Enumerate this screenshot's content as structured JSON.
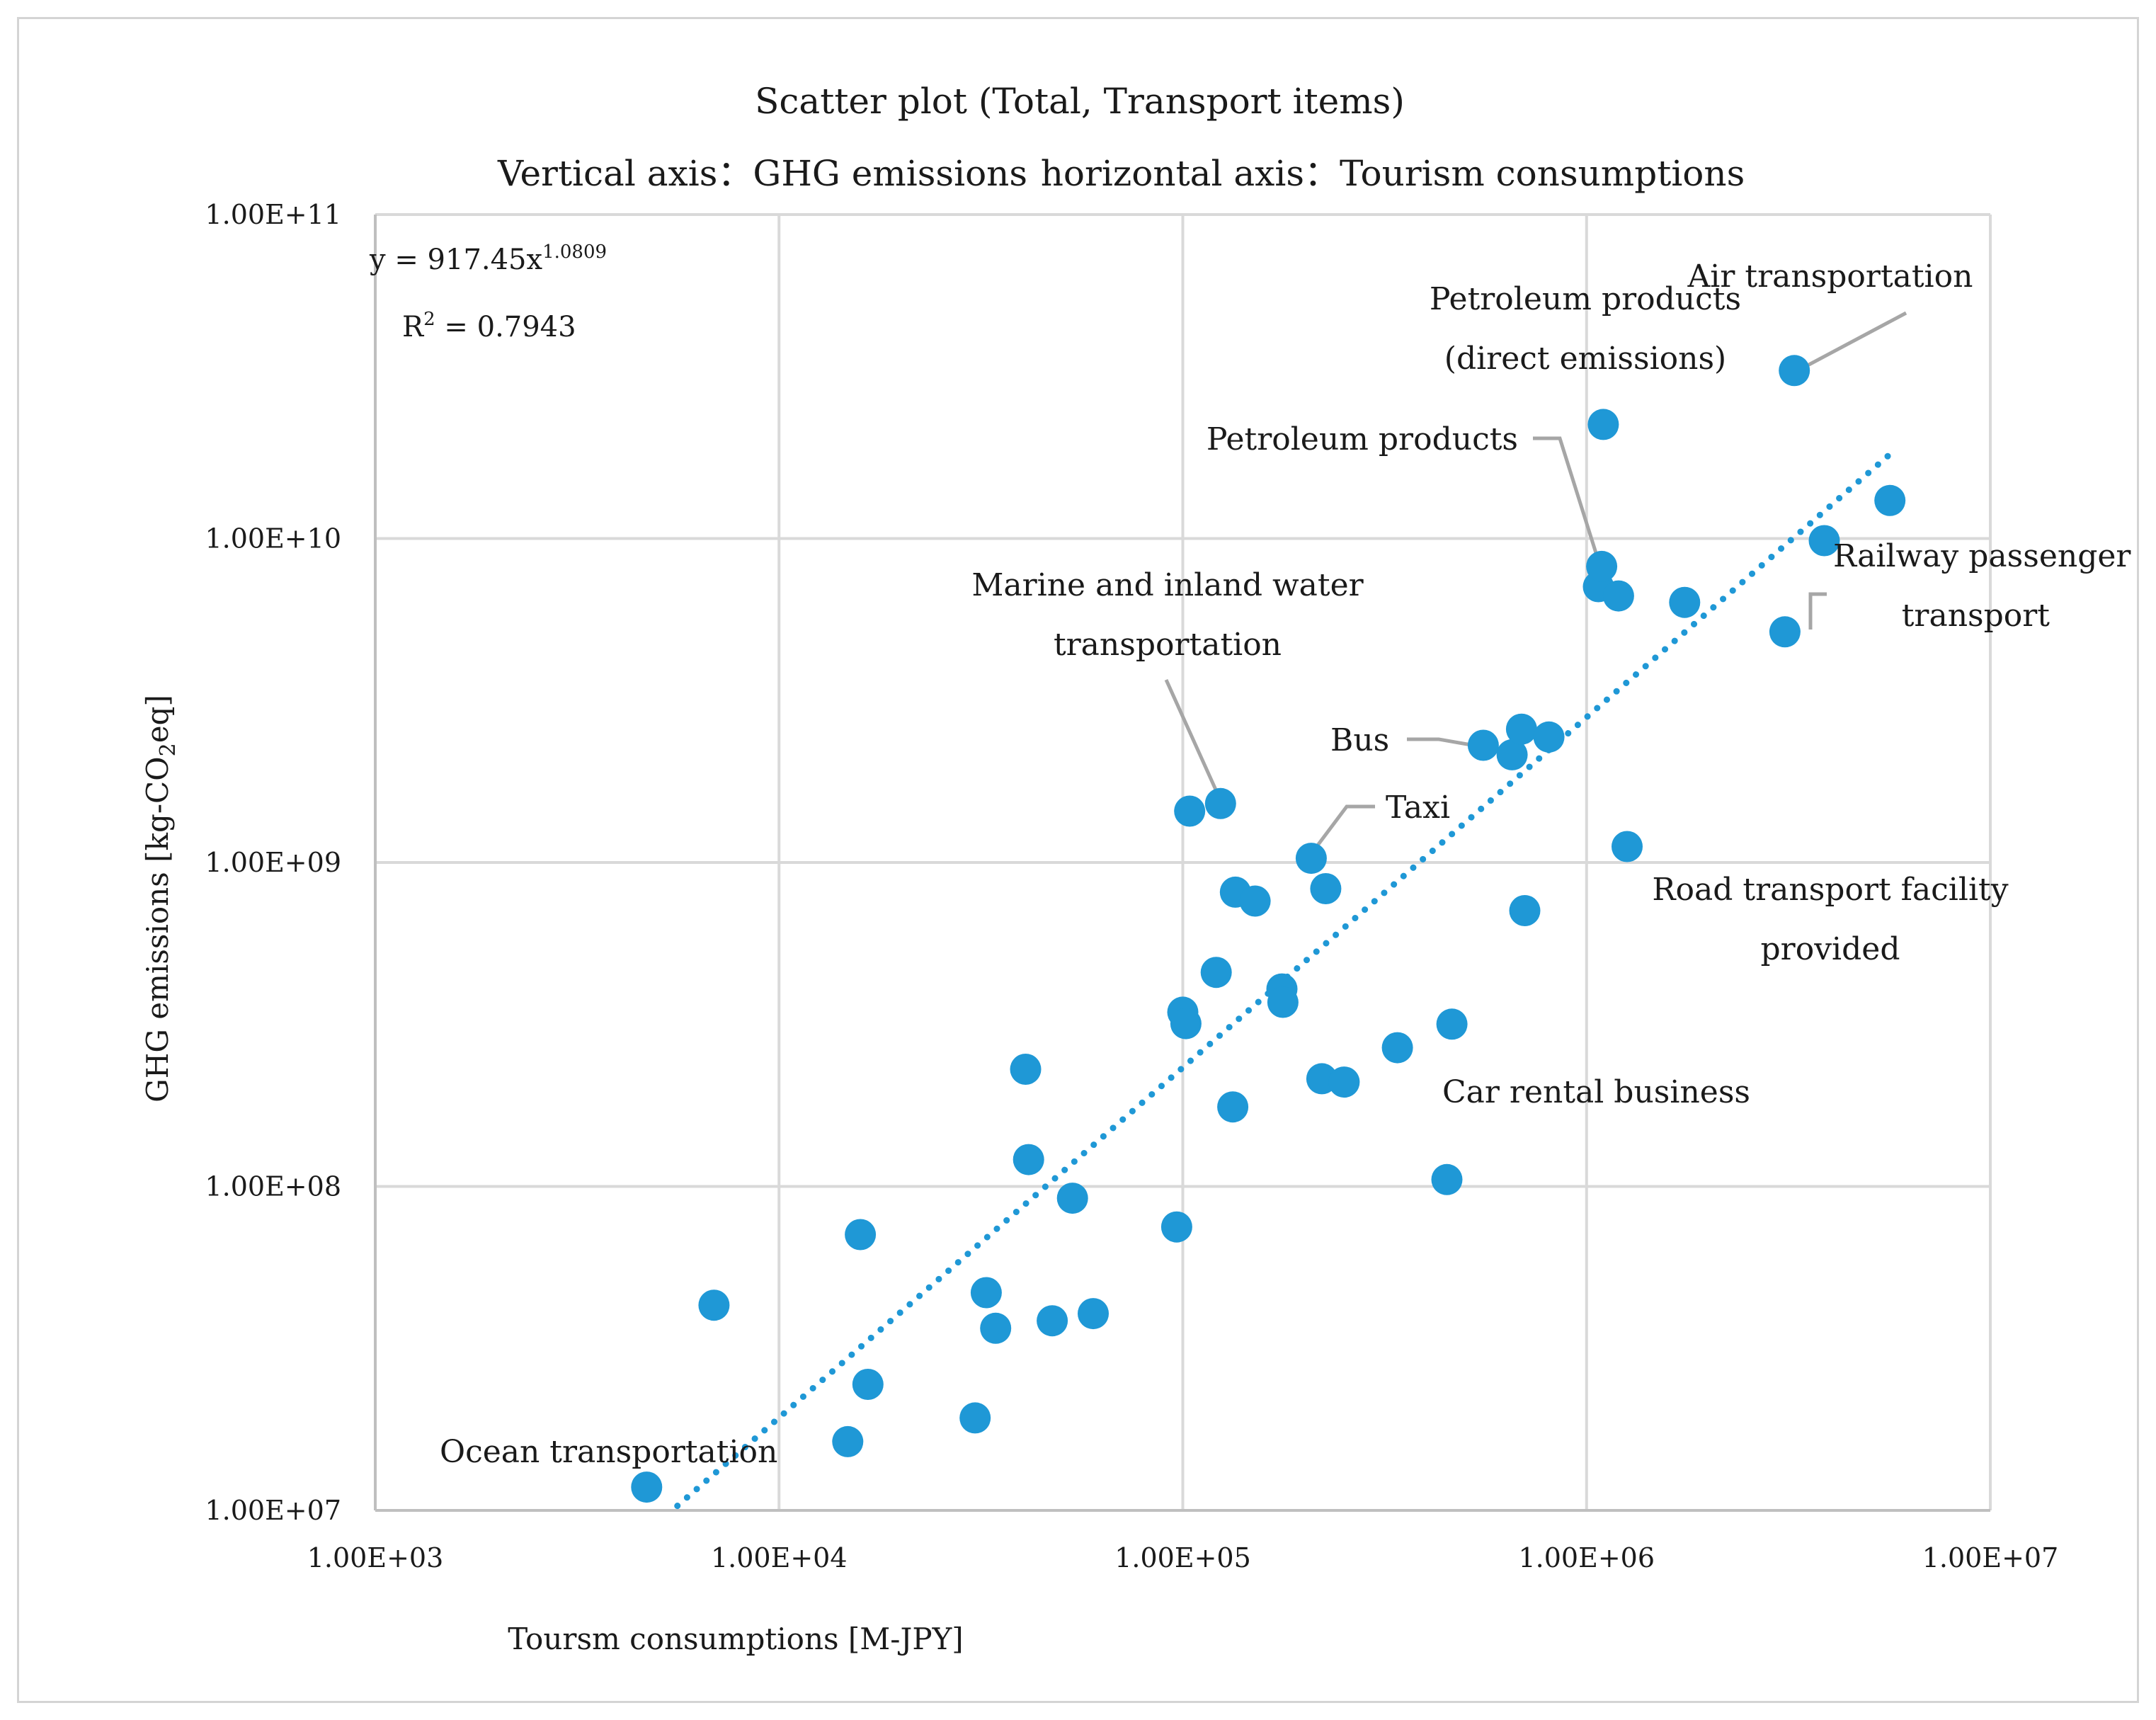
{
  "chart_data": {
    "type": "scatter",
    "title": "Scatter plot (Total, Transport items)",
    "subtitle_vertical": "Vertical axis：GHG emissions",
    "subtitle_horizontal": "horizontal axis：Tourism consumptions",
    "xlabel": "Toursm consumptions [M-JPY]",
    "ylabel_prefix": "GHG emissions [kg-CO",
    "ylabel_sub": "2",
    "ylabel_suffix": "eq]",
    "x_scale": "log",
    "y_scale": "log",
    "xlim": [
      1000,
      10000000
    ],
    "ylim": [
      10000000,
      100000000000
    ],
    "grid": true,
    "x_ticks": [
      {
        "value": 1000,
        "label": "1.00E+03"
      },
      {
        "value": 10000,
        "label": "1.00E+04"
      },
      {
        "value": 100000,
        "label": "1.00E+05"
      },
      {
        "value": 1000000,
        "label": "1.00E+06"
      },
      {
        "value": 10000000,
        "label": "1.00E+07"
      }
    ],
    "y_ticks": [
      {
        "value": 10000000,
        "label": "1.00E+07"
      },
      {
        "value": 100000000,
        "label": "1.00E+08"
      },
      {
        "value": 1000000000,
        "label": "1.00E+09"
      },
      {
        "value": 10000000000,
        "label": "1.00E+10"
      },
      {
        "value": 100000000000,
        "label": "1.00E+11"
      }
    ],
    "trendline": {
      "type": "power",
      "coefficient": 917.45,
      "exponent": 1.0809,
      "x_range": [
        5600,
        5600000
      ],
      "equation_prefix": "y = 917.45x",
      "equation_exponent": "1.0809",
      "r2_prefix": "R",
      "r2_exponent": "2",
      "r2_value": " = 0.7943"
    },
    "series": [
      {
        "name": "Transport items",
        "color": "#1f98d6",
        "points": [
          {
            "x": 4700,
            "y": 11800000
          },
          {
            "x": 6900,
            "y": 43000000
          },
          {
            "x": 14800,
            "y": 16300000
          },
          {
            "x": 15900,
            "y": 71000000
          },
          {
            "x": 16600,
            "y": 24500000
          },
          {
            "x": 30600,
            "y": 19300000
          },
          {
            "x": 32600,
            "y": 47000000
          },
          {
            "x": 34400,
            "y": 36500000
          },
          {
            "x": 40800,
            "y": 230000000
          },
          {
            "x": 41500,
            "y": 121000000
          },
          {
            "x": 47500,
            "y": 38500000
          },
          {
            "x": 53300,
            "y": 92000000
          },
          {
            "x": 60000,
            "y": 40500000
          },
          {
            "x": 96600,
            "y": 75000000
          },
          {
            "x": 100000,
            "y": 345000000
          },
          {
            "x": 101800,
            "y": 318000000
          },
          {
            "x": 104000,
            "y": 1440000000
          },
          {
            "x": 121000,
            "y": 458000000
          },
          {
            "x": 124000,
            "y": 1520000000
          },
          {
            "x": 133000,
            "y": 176000000
          },
          {
            "x": 135000,
            "y": 810000000
          },
          {
            "x": 151000,
            "y": 760000000
          },
          {
            "x": 176000,
            "y": 407000000
          },
          {
            "x": 177000,
            "y": 370000000
          },
          {
            "x": 208000,
            "y": 1030000000
          },
          {
            "x": 221000,
            "y": 215000000
          },
          {
            "x": 226000,
            "y": 830000000
          },
          {
            "x": 251000,
            "y": 210000000
          },
          {
            "x": 340000,
            "y": 268000000
          },
          {
            "x": 451000,
            "y": 105000000
          },
          {
            "x": 464000,
            "y": 317000000
          },
          {
            "x": 555000,
            "y": 2300000000
          },
          {
            "x": 654000,
            "y": 2150000000
          },
          {
            "x": 690000,
            "y": 2580000000
          },
          {
            "x": 703000,
            "y": 710000000
          },
          {
            "x": 807000,
            "y": 2440000000
          },
          {
            "x": 1070000,
            "y": 7100000000
          },
          {
            "x": 1090000,
            "y": 8200000000
          },
          {
            "x": 1100000,
            "y": 22500000000
          },
          {
            "x": 1200000,
            "y": 6650000000
          },
          {
            "x": 1260000,
            "y": 1120000000
          },
          {
            "x": 1750000,
            "y": 6350000000
          },
          {
            "x": 3100000,
            "y": 5150000000
          },
          {
            "x": 3270000,
            "y": 33000000000
          },
          {
            "x": 3880000,
            "y": 9850000000
          },
          {
            "x": 5640000,
            "y": 13100000000
          }
        ]
      }
    ],
    "annotations": [
      {
        "label": "Air transportation"
      },
      {
        "label": "Petroleum products",
        "label2": "(direct emissions)"
      },
      {
        "label": "Petroleum products"
      },
      {
        "label": "Railway passenger",
        "label2": "transport"
      },
      {
        "label": "Marine and inland water",
        "label2": "transportation"
      },
      {
        "label": "Bus"
      },
      {
        "label": "Taxi"
      },
      {
        "label": "Road transport facility",
        "label2": "provided"
      },
      {
        "label": "Car rental business"
      },
      {
        "label": "Ocean transportation"
      }
    ]
  }
}
